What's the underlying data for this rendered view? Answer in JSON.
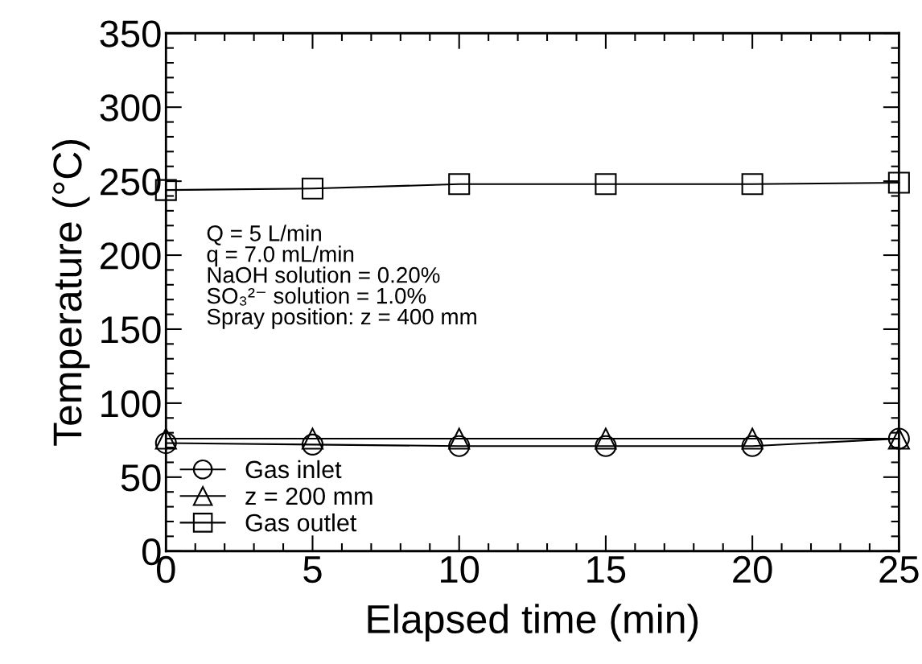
{
  "chart_data": {
    "type": "line",
    "xlabel": "Elapsed time (min)",
    "ylabel": "Temperature (°C)",
    "x": [
      0,
      5,
      10,
      15,
      20,
      25
    ],
    "series": [
      {
        "name": "Gas inlet",
        "color": "#000000",
        "marker": "circle",
        "values": [
          73,
          72,
          71,
          71,
          71,
          76
        ]
      },
      {
        "name": "z = 200 mm",
        "color": "#000000",
        "marker": "triangle",
        "values": [
          76,
          76,
          76,
          76,
          76,
          76
        ]
      },
      {
        "name": "Gas outlet",
        "color": "#000000",
        "marker": "square",
        "values": [
          244,
          245,
          248,
          248,
          248,
          249
        ]
      }
    ],
    "xlim": [
      0,
      25
    ],
    "xticks": [
      0,
      5,
      10,
      15,
      20,
      25
    ],
    "ylim": [
      0,
      350
    ],
    "yticks": [
      0,
      50,
      100,
      150,
      200,
      250,
      300,
      350
    ],
    "grid": false,
    "legend": "bottom left",
    "line_style": "solid",
    "annotations": [
      "Q = 5 L/min\nq = 7.0 mL/min\nNaOH solution = 0.20%\nSO₃²⁻ solution = 1.0%\nSpray position: z = 400 mm"
    ]
  }
}
